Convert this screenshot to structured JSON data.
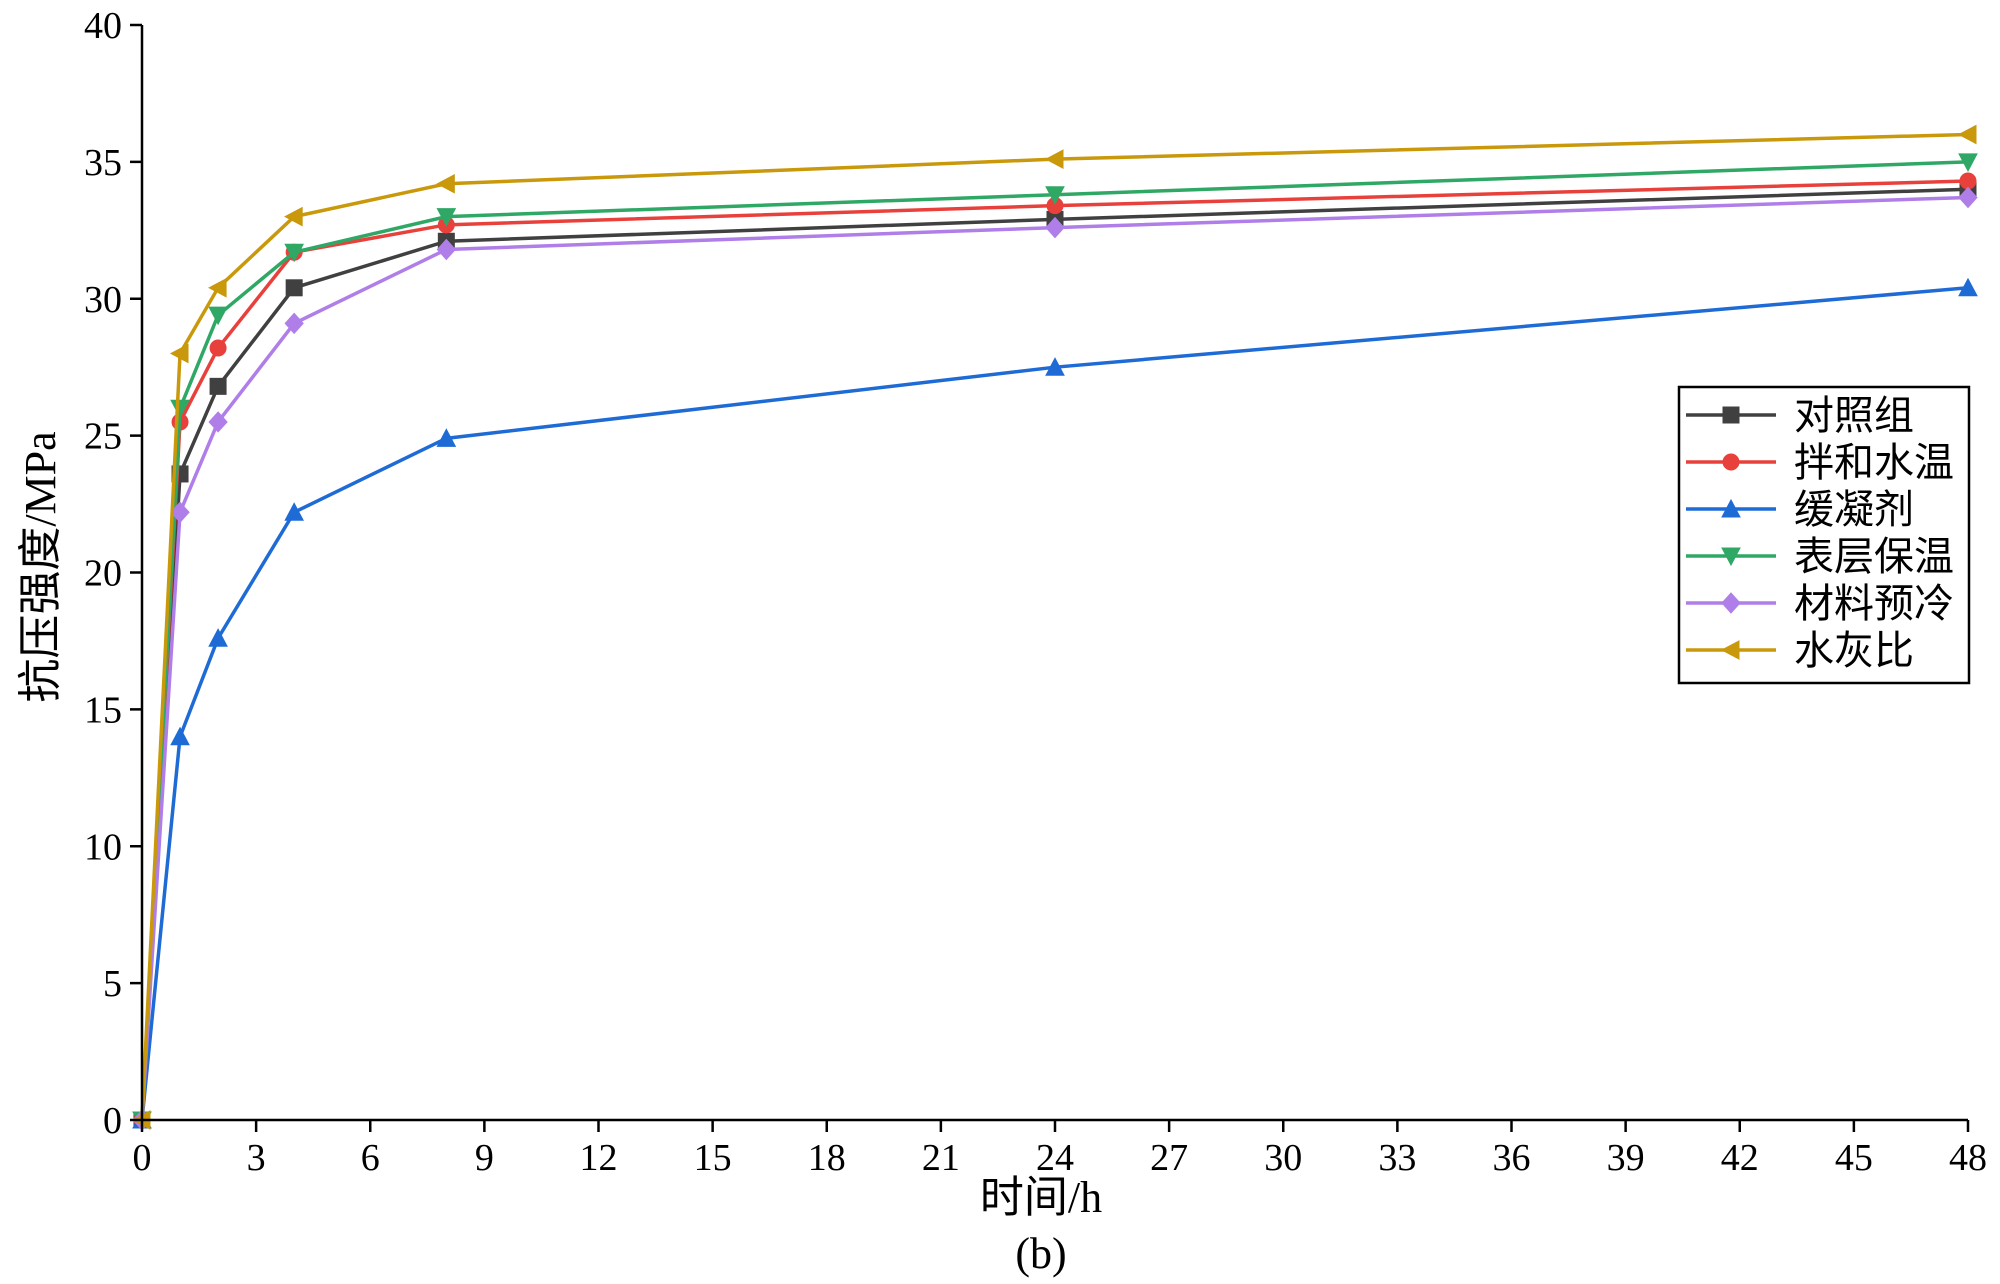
{
  "chart_data": {
    "type": "line",
    "xlabel": "时间/h",
    "ylabel": "抗压强度/MPa",
    "caption": "(b)",
    "xlim": [
      0,
      48
    ],
    "ylim": [
      0,
      40
    ],
    "xticks": [
      0,
      3,
      6,
      9,
      12,
      15,
      18,
      21,
      24,
      27,
      30,
      33,
      36,
      39,
      42,
      45,
      48
    ],
    "yticks": [
      0,
      5,
      10,
      15,
      20,
      25,
      30,
      35,
      40
    ],
    "x": [
      0,
      1,
      2,
      4,
      8,
      24,
      48
    ],
    "legend_position": "right",
    "series": [
      {
        "name": "对照组",
        "color": "#404040",
        "marker": "square",
        "values": [
          0,
          23.6,
          26.8,
          30.4,
          32.1,
          32.9,
          34.0
        ]
      },
      {
        "name": "拌和水温",
        "color": "#e8413c",
        "marker": "circle",
        "values": [
          0,
          25.5,
          28.2,
          31.7,
          32.7,
          33.4,
          34.3
        ]
      },
      {
        "name": "缓凝剂",
        "color": "#1f6bd6",
        "marker": "triangle-up",
        "values": [
          0,
          14.0,
          17.6,
          22.2,
          24.9,
          27.5,
          30.4
        ]
      },
      {
        "name": "表层保温",
        "color": "#2fa865",
        "marker": "triangle-down",
        "values": [
          0,
          26.0,
          29.4,
          31.7,
          33.0,
          33.8,
          35.0
        ]
      },
      {
        "name": "材料预冷",
        "color": "#b07ee8",
        "marker": "diamond",
        "values": [
          0,
          22.2,
          25.5,
          29.1,
          31.8,
          32.6,
          33.7
        ]
      },
      {
        "name": "水灰比",
        "color": "#c9980b",
        "marker": "triangle-left",
        "values": [
          0,
          28.0,
          30.4,
          33.0,
          34.2,
          35.1,
          36.0
        ]
      }
    ]
  }
}
